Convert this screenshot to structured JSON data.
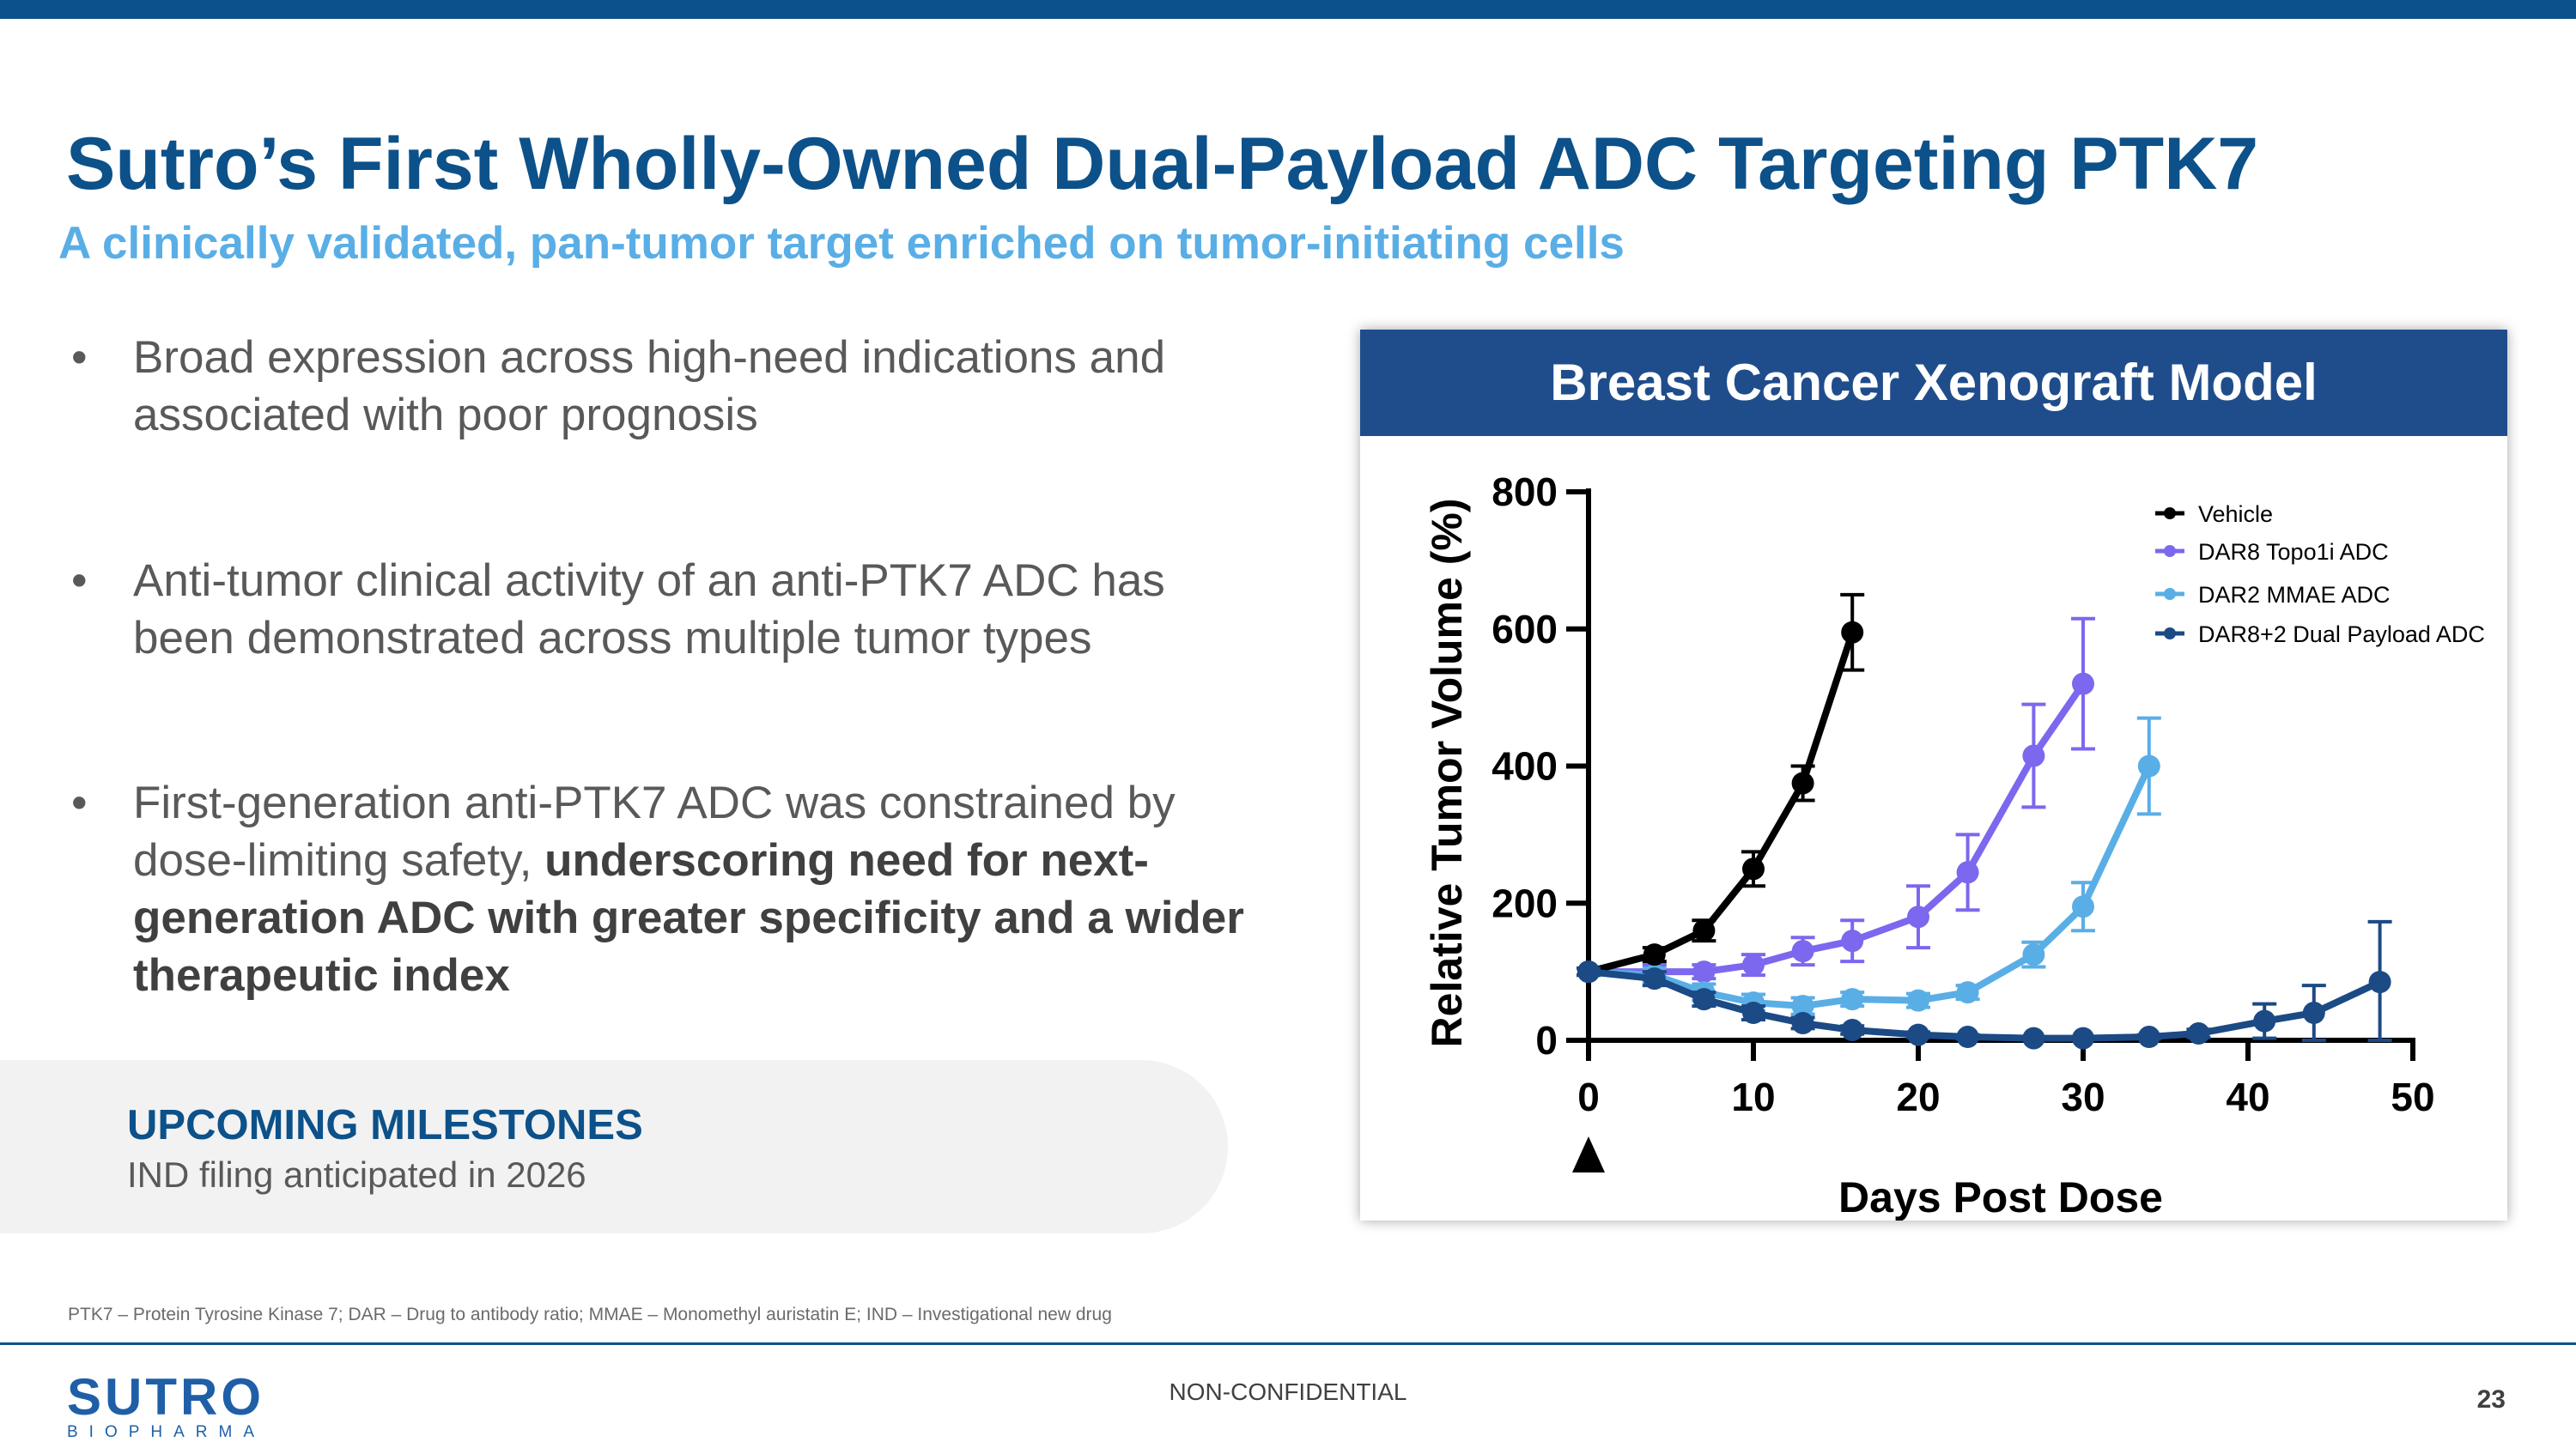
{
  "slide": {
    "title": "Sutro’s First Wholly-Owned Dual-Payload ADC Targeting PTK7",
    "subtitle": "A clinically validated, pan-tumor target enriched on tumor-initiating cells"
  },
  "bullets": [
    {
      "dot": "•",
      "text": "Broad expression across high-need indications and associated with poor prognosis",
      "bold": ""
    },
    {
      "dot": "•",
      "text": "Anti-tumor clinical activity of an anti-PTK7 ADC has been demonstrated across multiple tumor types",
      "bold": ""
    },
    {
      "dot": "•",
      "text": "First-generation anti-PTK7 ADC was constrained by dose-limiting safety, ",
      "bold": "underscoring need for next-generation ADC with greater specificity and a wider therapeutic index"
    }
  ],
  "milestones": {
    "heading": "UPCOMING MILESTONES",
    "text": "IND filing anticipated in 2026"
  },
  "chart_panel": {
    "header": "Breast Cancer Xenograft Model"
  },
  "chart_data": {
    "type": "line",
    "title": "Breast Cancer Xenograft Model",
    "xlabel": "Days Post Dose",
    "ylabel": "Relative Tumor  Volume (%)",
    "xlim": [
      0,
      50
    ],
    "ylim": [
      0,
      800
    ],
    "xticks": [
      0,
      10,
      20,
      30,
      40,
      50
    ],
    "yticks": [
      0,
      200,
      400,
      600,
      800
    ],
    "dose_marker_x": 0,
    "grid": false,
    "legend_position": "top-right",
    "series": [
      {
        "name": "Vehicle",
        "color": "#000000",
        "x": [
          0,
          4,
          7,
          10,
          13,
          16
        ],
        "y": [
          100,
          125,
          160,
          250,
          375,
          595
        ],
        "err": [
          5,
          10,
          15,
          25,
          25,
          55
        ]
      },
      {
        "name": "DAR8 Topo1i ADC",
        "color": "#7b68ee",
        "x": [
          0,
          4,
          7,
          10,
          13,
          16,
          20,
          23,
          27,
          30
        ],
        "y": [
          100,
          100,
          100,
          110,
          130,
          145,
          180,
          245,
          415,
          520
        ],
        "err": [
          5,
          10,
          10,
          15,
          20,
          30,
          45,
          55,
          75,
          95
        ]
      },
      {
        "name": "DAR2 MMAE ADC",
        "color": "#5aaee6",
        "x": [
          0,
          4,
          7,
          10,
          13,
          16,
          20,
          23,
          27,
          30,
          34
        ],
        "y": [
          100,
          95,
          70,
          55,
          50,
          60,
          58,
          70,
          125,
          195,
          400
        ],
        "err": [
          5,
          10,
          12,
          12,
          12,
          10,
          10,
          10,
          18,
          35,
          70
        ]
      },
      {
        "name": "DAR8+2 Dual Payload ADC",
        "color": "#1b4a85",
        "x": [
          0,
          4,
          7,
          10,
          13,
          16,
          20,
          23,
          27,
          30,
          34,
          37,
          41,
          44,
          48
        ],
        "y": [
          100,
          90,
          60,
          40,
          25,
          15,
          8,
          5,
          3,
          3,
          5,
          10,
          28,
          40,
          85
        ],
        "err": [
          5,
          10,
          10,
          10,
          8,
          6,
          4,
          3,
          2,
          2,
          3,
          6,
          25,
          40,
          88
        ]
      }
    ]
  },
  "footer": {
    "footnote": "PTK7 – Protein Tyrosine Kinase 7; DAR – Drug to antibody ratio; MMAE – Monomethyl auristatin E; IND – Investigational new drug",
    "classification": "NON-CONFIDENTIAL",
    "page_number": "23",
    "logo_main": "SUTRO",
    "logo_sub": "BIOPHARMA"
  }
}
